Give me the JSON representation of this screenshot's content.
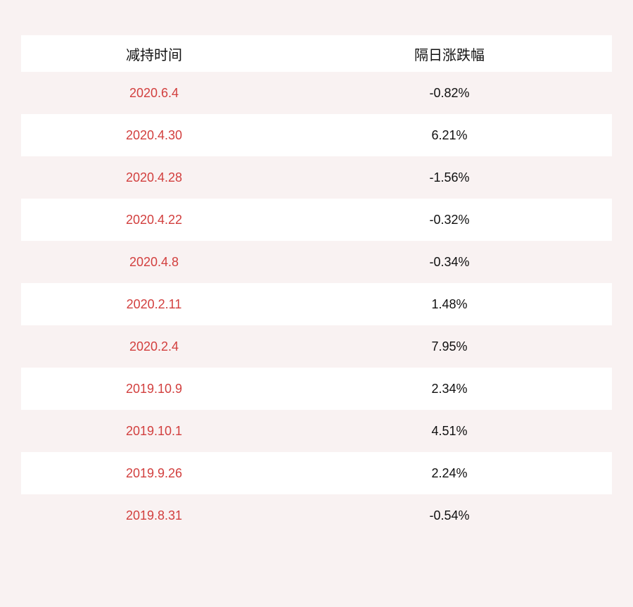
{
  "page": {
    "background_color": "#f9f2f2"
  },
  "table": {
    "columns": [
      {
        "label": "减持时间"
      },
      {
        "label": "隔日涨跌幅"
      }
    ],
    "rows": [
      {
        "date": "2020.6.4",
        "change": "-0.82%"
      },
      {
        "date": "2020.4.30",
        "change": "6.21%"
      },
      {
        "date": "2020.4.28",
        "change": "-1.56%"
      },
      {
        "date": "2020.4.22",
        "change": "-0.32%"
      },
      {
        "date": "2020.4.8",
        "change": "-0.34%"
      },
      {
        "date": "2020.2.11",
        "change": "1.48%"
      },
      {
        "date": "2020.2.4",
        "change": "7.95%"
      },
      {
        "date": "2019.10.9",
        "change": "2.34%"
      },
      {
        "date": "2019.10.1",
        "change": "4.51%"
      },
      {
        "date": "2019.9.26",
        "change": "2.24%"
      },
      {
        "date": "2019.8.31",
        "change": "-0.54%"
      }
    ],
    "colors": {
      "date_text": "#d23f3e",
      "value_text": "#101010",
      "header_text": "#111111",
      "row_white": "#ffffff",
      "row_pink": "#f9f2f2"
    }
  },
  "chart_data": {
    "type": "table",
    "title": "",
    "columns": [
      "减持时间",
      "隔日涨跌幅"
    ],
    "rows": [
      [
        "2020.6.4",
        "-0.82%"
      ],
      [
        "2020.4.30",
        "6.21%"
      ],
      [
        "2020.4.28",
        "-1.56%"
      ],
      [
        "2020.4.22",
        "-0.32%"
      ],
      [
        "2020.4.8",
        "-0.34%"
      ],
      [
        "2020.2.11",
        "1.48%"
      ],
      [
        "2020.2.4",
        "7.95%"
      ],
      [
        "2019.10.9",
        "2.34%"
      ],
      [
        "2019.10.1",
        "4.51%"
      ],
      [
        "2019.9.26",
        "2.24%"
      ],
      [
        "2019.8.31",
        "-0.54%"
      ]
    ],
    "values_numeric_pct": [
      -0.82,
      6.21,
      -1.56,
      -0.32,
      -0.34,
      1.48,
      7.95,
      2.34,
      4.51,
      2.24,
      -0.54
    ],
    "layout": {
      "striping": "alternating pink/white rows, header white",
      "alignment": "centered"
    }
  }
}
